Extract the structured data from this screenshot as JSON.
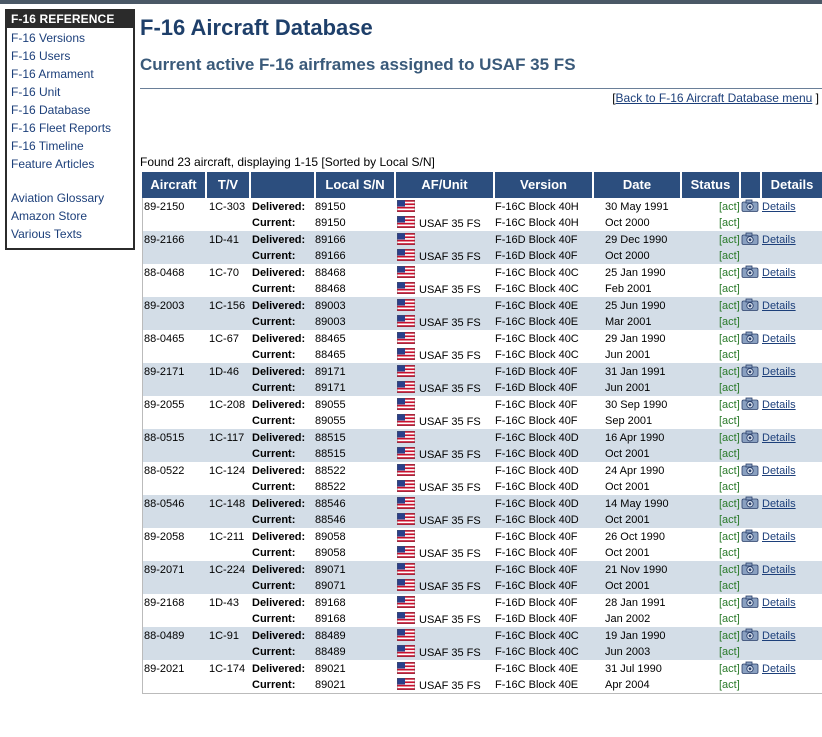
{
  "sidebar": {
    "title": "F-16 REFERENCE",
    "items": [
      {
        "label": "F-16 Versions"
      },
      {
        "label": "F-16 Users"
      },
      {
        "label": "F-16 Armament"
      },
      {
        "label": "F-16 Unit"
      },
      {
        "label": "F-16 Database"
      },
      {
        "label": "F-16 Fleet Reports"
      },
      {
        "label": "F-16 Timeline"
      },
      {
        "label": "Feature Articles"
      },
      {
        "label": "Aviation Glossary"
      },
      {
        "label": "Amazon Store"
      },
      {
        "label": "Various Texts"
      }
    ]
  },
  "header": {
    "title": "F-16 Aircraft Database",
    "subtitle": "Current active F-16 airframes assigned to USAF 35 FS",
    "back_open": "[",
    "back_link": "Back to F-16 Aircraft Database menu",
    "back_close": "]"
  },
  "found_text": "Found 23 aircraft, displaying 1-15 [Sorted by Local S/N]",
  "table": {
    "columns": [
      "Aircraft",
      "T/V",
      "",
      "Local S/N",
      "AF/Unit",
      "Version",
      "Date",
      "Status",
      "",
      "Details"
    ],
    "delivered_label": "Delivered:",
    "current_label": "Current:",
    "status_label": "[act]",
    "details_label": "Details",
    "unit_label": "USAF 35 FS",
    "rows": [
      {
        "aircraft": "89-2150",
        "tv": "1C-303",
        "d_sn": "89150",
        "c_sn": "89150",
        "d_ver": "F-16C Block 40H",
        "c_ver": "F-16C Block 40H",
        "d_date": "30 May 1991",
        "c_date": "Oct 2000"
      },
      {
        "aircraft": "89-2166",
        "tv": "1D-41",
        "d_sn": "89166",
        "c_sn": "89166",
        "d_ver": "F-16D Block 40F",
        "c_ver": "F-16D Block 40F",
        "d_date": "29 Dec 1990",
        "c_date": "Oct 2000"
      },
      {
        "aircraft": "88-0468",
        "tv": "1C-70",
        "d_sn": "88468",
        "c_sn": "88468",
        "d_ver": "F-16C Block 40C",
        "c_ver": "F-16C Block 40C",
        "d_date": "25 Jan 1990",
        "c_date": "Feb 2001"
      },
      {
        "aircraft": "89-2003",
        "tv": "1C-156",
        "d_sn": "89003",
        "c_sn": "89003",
        "d_ver": "F-16C Block 40E",
        "c_ver": "F-16C Block 40E",
        "d_date": "25 Jun 1990",
        "c_date": "Mar 2001"
      },
      {
        "aircraft": "88-0465",
        "tv": "1C-67",
        "d_sn": "88465",
        "c_sn": "88465",
        "d_ver": "F-16C Block 40C",
        "c_ver": "F-16C Block 40C",
        "d_date": "29 Jan 1990",
        "c_date": "Jun 2001"
      },
      {
        "aircraft": "89-2171",
        "tv": "1D-46",
        "d_sn": "89171",
        "c_sn": "89171",
        "d_ver": "F-16D Block 40F",
        "c_ver": "F-16D Block 40F",
        "d_date": "31 Jan 1991",
        "c_date": "Jun 2001"
      },
      {
        "aircraft": "89-2055",
        "tv": "1C-208",
        "d_sn": "89055",
        "c_sn": "89055",
        "d_ver": "F-16C Block 40F",
        "c_ver": "F-16C Block 40F",
        "d_date": "30 Sep 1990",
        "c_date": "Sep 2001"
      },
      {
        "aircraft": "88-0515",
        "tv": "1C-117",
        "d_sn": "88515",
        "c_sn": "88515",
        "d_ver": "F-16C Block 40D",
        "c_ver": "F-16C Block 40D",
        "d_date": "16 Apr 1990",
        "c_date": "Oct 2001"
      },
      {
        "aircraft": "88-0522",
        "tv": "1C-124",
        "d_sn": "88522",
        "c_sn": "88522",
        "d_ver": "F-16C Block 40D",
        "c_ver": "F-16C Block 40D",
        "d_date": "24 Apr 1990",
        "c_date": "Oct 2001"
      },
      {
        "aircraft": "88-0546",
        "tv": "1C-148",
        "d_sn": "88546",
        "c_sn": "88546",
        "d_ver": "F-16C Block 40D",
        "c_ver": "F-16C Block 40D",
        "d_date": "14 May 1990",
        "c_date": "Oct 2001"
      },
      {
        "aircraft": "89-2058",
        "tv": "1C-211",
        "d_sn": "89058",
        "c_sn": "89058",
        "d_ver": "F-16C Block 40F",
        "c_ver": "F-16C Block 40F",
        "d_date": "26 Oct 1990",
        "c_date": "Oct 2001"
      },
      {
        "aircraft": "89-2071",
        "tv": "1C-224",
        "d_sn": "89071",
        "c_sn": "89071",
        "d_ver": "F-16C Block 40F",
        "c_ver": "F-16C Block 40F",
        "d_date": "21 Nov 1990",
        "c_date": "Oct 2001"
      },
      {
        "aircraft": "89-2168",
        "tv": "1D-43",
        "d_sn": "89168",
        "c_sn": "89168",
        "d_ver": "F-16D Block 40F",
        "c_ver": "F-16D Block 40F",
        "d_date": "28 Jan 1991",
        "c_date": "Jan 2002"
      },
      {
        "aircraft": "88-0489",
        "tv": "1C-91",
        "d_sn": "88489",
        "c_sn": "88489",
        "d_ver": "F-16C Block 40C",
        "c_ver": "F-16C Block 40C",
        "d_date": "19 Jan 1990",
        "c_date": "Jun 2003"
      },
      {
        "aircraft": "89-2021",
        "tv": "1C-174",
        "d_sn": "89021",
        "c_sn": "89021",
        "d_ver": "F-16C Block 40E",
        "c_ver": "F-16C Block 40E",
        "d_date": "31 Jul 1990",
        "c_date": "Apr 2004"
      }
    ]
  },
  "colors": {
    "header_bg": "#2c4e7e",
    "alt_row_bg": "#d3dde7",
    "status_green": "#2a7a2a",
    "link_blue": "#1c3f7a"
  }
}
